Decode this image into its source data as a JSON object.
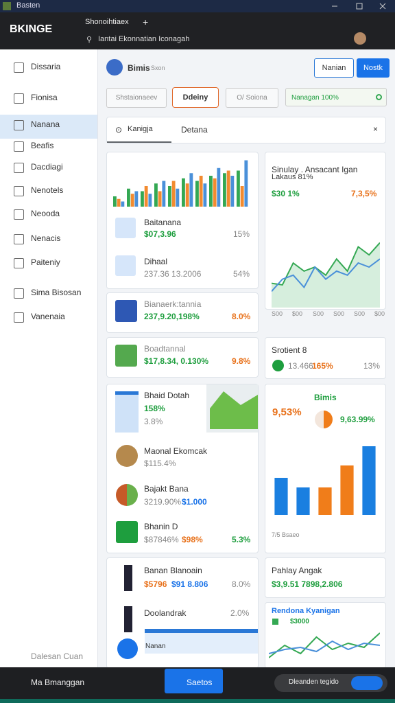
{
  "window": {
    "title": "Basten"
  },
  "browser": {
    "logo": "BKINGE",
    "tab": "Shonoihtiaex",
    "address": "Iantai Ekonnatian Iconagah"
  },
  "sidebar": {
    "items": [
      "Dissaria",
      "Fionisa",
      "Nanana",
      "Beafis",
      "Dacdiagi",
      "Nenotels",
      "Neooda",
      "Nenacis",
      "Paiteniy",
      "Sima Bisosan",
      "Vanenaia"
    ],
    "footer": "Dalesan Cuan"
  },
  "header": {
    "name": "Bimis",
    "subtitle": "Sxon",
    "buttons": [
      "Nanian",
      "Nostk"
    ]
  },
  "filters": [
    "Shstaionaeev",
    "Ddeiny",
    "O/ Soiona",
    "Nanagan 100%"
  ],
  "tabs": [
    "Kanigja",
    "Detana"
  ],
  "left": {
    "overview": {
      "chart": {
        "type": "bar",
        "ylim": [
          0,
          100
        ],
        "series": [
          {
            "color": "#34a853",
            "values": [
              20,
              35,
              30,
              45,
              40,
              55,
              50,
              60,
              65,
              70
            ]
          },
          {
            "color": "#f28b30",
            "values": [
              15,
              25,
              40,
              30,
              50,
              45,
              60,
              55,
              70,
              40
            ]
          },
          {
            "color": "#4a90d9",
            "values": [
              10,
              30,
              25,
              50,
              35,
              65,
              45,
              75,
              60,
              90
            ]
          }
        ]
      },
      "rows": [
        {
          "title": "Baitanana",
          "value": "$07,3.96",
          "change": "15%"
        },
        {
          "title": "Dihaal",
          "value": "237.36 13.2006",
          "change": "54%"
        }
      ]
    },
    "cards": [
      {
        "title": "Bianaerk:tannia",
        "value": "237,9.20,198%",
        "change": "8.0%"
      },
      {
        "title": "Boadtannal",
        "value": "$17,8.34, 0.130%",
        "change": "9.8%"
      }
    ],
    "list": [
      {
        "title": "Bhaid Dotah",
        "value": "158%",
        "change": "3.8%"
      },
      {
        "title": "Maonal Ekomcak",
        "value": "$115.4%"
      },
      {
        "title": "Bajakt Bana",
        "value": "3219.90%",
        "change": "$1.000"
      },
      {
        "title": "Bhanin D",
        "value": "$87846%",
        "change": "$98%",
        "extra": "5.3%"
      }
    ],
    "people": [
      {
        "title": "Banan Blanoain",
        "value": "$5796",
        "change": "$91 8.806",
        "extra": "8.0%"
      },
      {
        "title": "Doolandrak",
        "extra": "2.0%"
      }
    ],
    "strip": "Nanan"
  },
  "right": {
    "trend": {
      "title": "Sinulay . Ansacant Igan",
      "subtitle": "Lakaus 81%",
      "value": "$30 1%",
      "change": "7,3,5%",
      "chart": {
        "type": "area",
        "ylim": [
          0,
          100
        ],
        "series": [
          {
            "color": "#34a853",
            "values": [
              30,
              28,
              55,
              45,
              50,
              40,
              60,
              45,
              75,
              65,
              80
            ]
          },
          {
            "color": "#4a90d9",
            "values": [
              20,
              35,
              40,
              25,
              50,
              35,
              45,
              40,
              55,
              50,
              60
            ]
          }
        ],
        "categories": [
          "S00",
          "$00",
          "S00",
          "S00",
          "S00",
          "$00"
        ]
      }
    },
    "stat": {
      "title": "Srotient 8",
      "value": "13.466",
      "change": "165%",
      "extra": "13%"
    },
    "bars": {
      "title": "Bimis",
      "value": "9,53%",
      "change": "9,63.99%",
      "caption": "7/5 Bsaeo",
      "chart": {
        "type": "bar",
        "ylim": [
          0,
          100
        ],
        "values": [
          54,
          40,
          40,
          72,
          100
        ],
        "colors": [
          "#1a7fe0",
          "#1a7fe0",
          "#f07d1a",
          "#f07d1a",
          "#1a7fe0"
        ]
      }
    },
    "pay": {
      "title": "Pahlay Angak",
      "value": "$3,9.51 7898,2.806"
    },
    "lines": {
      "title": "Rendona Kyanigan",
      "value": "$3000",
      "chart": {
        "type": "line",
        "ylim": [
          0,
          100
        ],
        "series": [
          {
            "color": "#34a853",
            "values": [
              20,
              50,
              30,
              70,
              40,
              55,
              45,
              80
            ]
          },
          {
            "color": "#4a90d9",
            "values": [
              30,
              40,
              45,
              35,
              60,
              40,
              55,
              50
            ]
          }
        ]
      }
    }
  },
  "taskbar": {
    "left": "Ma Bmanggan",
    "button": "Saetos",
    "right": "Dleanden tegido"
  }
}
